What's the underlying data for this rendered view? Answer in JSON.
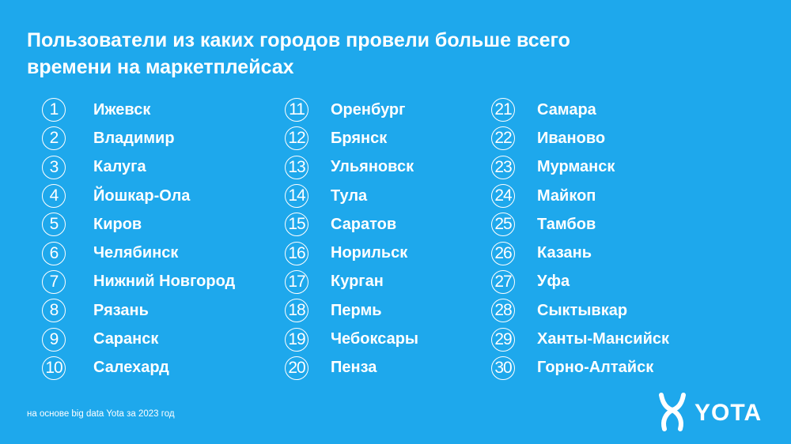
{
  "title": {
    "line1": "Пользователи из каких городов провели больше всего",
    "line2": "времени на маркетплейсах"
  },
  "columns": [
    [
      {
        "rank": "1",
        "city": "Ижевск"
      },
      {
        "rank": "2",
        "city": "Владимир"
      },
      {
        "rank": "3",
        "city": "Калуга"
      },
      {
        "rank": "4",
        "city": "Йошкар-Ола"
      },
      {
        "rank": "5",
        "city": "Киров"
      },
      {
        "rank": "6",
        "city": "Челябинск"
      },
      {
        "rank": "7",
        "city": "Нижний Новгород"
      },
      {
        "rank": "8",
        "city": "Рязань"
      },
      {
        "rank": "9",
        "city": "Саранск"
      },
      {
        "rank": "10",
        "city": "Салехард"
      }
    ],
    [
      {
        "rank": "11",
        "city": "Оренбург"
      },
      {
        "rank": "12",
        "city": "Брянск"
      },
      {
        "rank": "13",
        "city": "Ульяновск"
      },
      {
        "rank": "14",
        "city": "Тула"
      },
      {
        "rank": "15",
        "city": "Саратов"
      },
      {
        "rank": "16",
        "city": "Норильск"
      },
      {
        "rank": "17",
        "city": "Курган"
      },
      {
        "rank": "18",
        "city": "Пермь"
      },
      {
        "rank": "19",
        "city": "Чебоксары"
      },
      {
        "rank": "20",
        "city": "Пенза"
      }
    ],
    [
      {
        "rank": "21",
        "city": "Самара"
      },
      {
        "rank": "22",
        "city": "Иваново"
      },
      {
        "rank": "23",
        "city": "Мурманск"
      },
      {
        "rank": "24",
        "city": "Майкоп"
      },
      {
        "rank": "25",
        "city": "Тамбов"
      },
      {
        "rank": "26",
        "city": "Казань"
      },
      {
        "rank": "27",
        "city": "Уфа"
      },
      {
        "rank": "28",
        "city": "Сыктывкар"
      },
      {
        "rank": "29",
        "city": "Ханты-Мансийск"
      },
      {
        "rank": "30",
        "city": "Горно-Алтайск"
      }
    ]
  ],
  "footnote": "на основе big data Yota за 2023 год",
  "logo": {
    "text": "YOTA",
    "icon": "yota-logo-icon"
  },
  "colors": {
    "background": "#1ea8ec",
    "text": "#ffffff"
  }
}
